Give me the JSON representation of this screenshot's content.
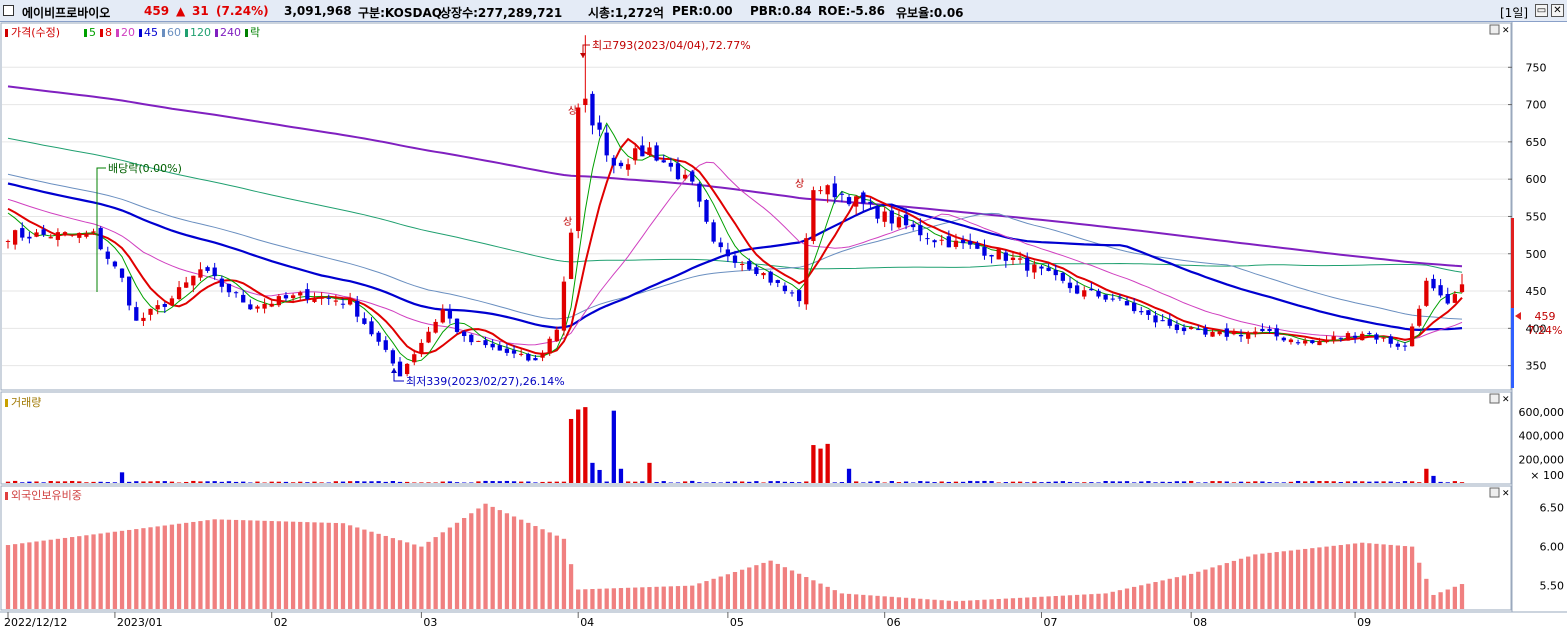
{
  "header": {
    "name": "에이비프로바이오",
    "price": "459",
    "change_arrow": "▲",
    "change": "31",
    "change_pct": "(7.24%)",
    "volume": "3,091,968",
    "market": "구분:KOSDAQ",
    "shares": "상장수:277,289,721",
    "mcap": "시총:1,272억",
    "per": "PER:0.00",
    "pbr": "PBR:0.84",
    "roe": "ROE:-5.86",
    "float_ratio": "유보율:0.06",
    "period": "[1일]",
    "colors": {
      "up": "#e00000",
      "down": "#0000e0",
      "text": "#000000"
    }
  },
  "window_buttons": [
    "▭",
    "✕"
  ],
  "pane_buttons": [
    "▭",
    "✕"
  ],
  "panes": {
    "price": {
      "legend": [
        {
          "text": "가격(수정)",
          "color": "#d00000"
        },
        {
          "text": "5",
          "color": "#00a000"
        },
        {
          "text": "8",
          "color": "#e00000"
        },
        {
          "text": "20",
          "color": "#d040c0"
        },
        {
          "text": "45",
          "color": "#0000d0"
        },
        {
          "text": "60",
          "color": "#6a8fc0"
        },
        {
          "text": "120",
          "color": "#20a070"
        },
        {
          "text": "240",
          "color": "#8020c0"
        },
        {
          "text": "락",
          "color": "#008000"
        }
      ],
      "annotations": {
        "high": "최고793(2023/04/04),72.77%",
        "low": "최저339(2023/02/27),26.14%",
        "dividend": "배당락(0.00%)",
        "limit_up_marks": [
          "상",
          "상",
          "상"
        ]
      },
      "last_price": "459",
      "last_pct": "7.24%",
      "yticks": [
        350,
        400,
        450,
        500,
        550,
        600,
        650,
        700,
        750
      ]
    },
    "volume": {
      "legend": "거래량",
      "yticks": [
        "600,000",
        "400,000",
        "200,000"
      ],
      "unit": "× 100"
    },
    "foreign": {
      "legend": "외국인보유비중",
      "yticks": [
        "6.50",
        "6.00",
        "5.50"
      ]
    }
  },
  "x_axis": [
    "2022/12/12",
    "2023/01",
    "02",
    "03",
    "04",
    "05",
    "06",
    "07",
    "08",
    "09"
  ],
  "chart_data": [
    {
      "type": "candlestick",
      "title": "가격(수정)",
      "ylim": [
        320,
        800
      ],
      "x": [
        "2022/12/12",
        "2023/01",
        "02",
        "03",
        "04",
        "05",
        "06",
        "07",
        "08",
        "09"
      ],
      "close_keypoints": [
        {
          "date": "2022/12/12",
          "close": 525
        },
        {
          "date": "2022/12/28",
          "close": 525
        },
        {
          "date": "2023/01/03",
          "close": 465
        },
        {
          "date": "2023/01/05",
          "close": 408
        },
        {
          "date": "2023/01/12",
          "close": 440
        },
        {
          "date": "2023/01/18",
          "close": 478
        },
        {
          "date": "2023/01/27",
          "close": 430
        },
        {
          "date": "2023/02/08",
          "close": 445
        },
        {
          "date": "2023/02/16",
          "close": 435
        },
        {
          "date": "2023/02/27",
          "close": 339
        },
        {
          "date": "2023/03/07",
          "close": 425
        },
        {
          "date": "2023/03/10",
          "close": 385
        },
        {
          "date": "2023/03/17",
          "close": 370
        },
        {
          "date": "2023/03/24",
          "close": 355
        },
        {
          "date": "2023/03/29",
          "close": 400
        },
        {
          "date": "2023/03/31",
          "close": 530
        },
        {
          "date": "2023/04/03",
          "close": 690
        },
        {
          "date": "2023/04/04",
          "close": 700
        },
        {
          "date": "2023/04/10",
          "close": 620
        },
        {
          "date": "2023/04/17",
          "close": 640
        },
        {
          "date": "2023/04/25",
          "close": 590
        },
        {
          "date": "2023/04/28",
          "close": 510
        },
        {
          "date": "2023/05/08",
          "close": 480
        },
        {
          "date": "2023/05/12",
          "close": 450
        },
        {
          "date": "2023/05/16",
          "close": 440
        },
        {
          "date": "2023/05/18",
          "close": 590
        },
        {
          "date": "2023/05/24",
          "close": 580
        },
        {
          "date": "2023/06/01",
          "close": 550
        },
        {
          "date": "2023/06/12",
          "close": 520
        },
        {
          "date": "2023/06/23",
          "close": 500
        },
        {
          "date": "2023/06/30",
          "close": 480
        },
        {
          "date": "2023/07/10",
          "close": 450
        },
        {
          "date": "2023/07/17",
          "close": 440
        },
        {
          "date": "2023/07/25",
          "close": 410
        },
        {
          "date": "2023/08/03",
          "close": 390
        },
        {
          "date": "2023/08/14",
          "close": 395
        },
        {
          "date": "2023/08/24",
          "close": 380
        },
        {
          "date": "2023/09/04",
          "close": 395
        },
        {
          "date": "2023/09/12",
          "close": 375
        },
        {
          "date": "2023/09/15",
          "close": 460
        },
        {
          "date": "2023/09/20",
          "close": 428
        },
        {
          "date": "2023/09/22",
          "close": 459
        }
      ],
      "high": 793,
      "high_date": "2023/04/04",
      "low": 339,
      "low_date": "2023/02/27",
      "series": [
        {
          "name": "5",
          "type": "line"
        },
        {
          "name": "8",
          "type": "line"
        },
        {
          "name": "20",
          "type": "line"
        },
        {
          "name": "45",
          "type": "line"
        },
        {
          "name": "60",
          "type": "line"
        },
        {
          "name": "120",
          "type": "line"
        },
        {
          "name": "240",
          "type": "line"
        }
      ],
      "last_close": 459,
      "last_change_pct": "7.24%"
    },
    {
      "type": "bar",
      "title": "거래량",
      "unit": "× 100",
      "ylim": [
        0,
        700000
      ],
      "spikes": [
        {
          "date": "2023/01/03",
          "value": 90000
        },
        {
          "date": "2023/03/31",
          "value": 540000
        },
        {
          "date": "2023/04/03",
          "value": 620000
        },
        {
          "date": "2023/04/04",
          "value": 640000
        },
        {
          "date": "2023/04/05",
          "value": 170000
        },
        {
          "date": "2023/04/06",
          "value": 110000
        },
        {
          "date": "2023/04/10",
          "value": 610000
        },
        {
          "date": "2023/04/11",
          "value": 120000
        },
        {
          "date": "2023/04/17",
          "value": 170000
        },
        {
          "date": "2023/05/18",
          "value": 320000
        },
        {
          "date": "2023/05/19",
          "value": 290000
        },
        {
          "date": "2023/05/22",
          "value": 330000
        },
        {
          "date": "2023/05/25",
          "value": 120000
        },
        {
          "date": "2023/09/15",
          "value": 120000
        },
        {
          "date": "2023/09/18",
          "value": 60000
        }
      ]
    },
    {
      "type": "bar",
      "title": "외국인보유비중",
      "ylim": [
        5.2,
        6.7
      ],
      "keypoints": [
        {
          "date": "2022/12/12",
          "value": 6.02
        },
        {
          "date": "2023/01/20",
          "value": 6.35
        },
        {
          "date": "2023/02/15",
          "value": 6.3
        },
        {
          "date": "2023/03/02",
          "value": 6.0
        },
        {
          "date": "2023/03/15",
          "value": 6.55
        },
        {
          "date": "2023/03/30",
          "value": 6.1
        },
        {
          "date": "2023/04/03",
          "value": 5.45
        },
        {
          "date": "2023/04/25",
          "value": 5.5
        },
        {
          "date": "2023/05/10",
          "value": 5.82
        },
        {
          "date": "2023/05/24",
          "value": 5.4
        },
        {
          "date": "2023/06/15",
          "value": 5.3
        },
        {
          "date": "2023/07/15",
          "value": 5.4
        },
        {
          "date": "2023/08/01",
          "value": 5.65
        },
        {
          "date": "2023/08/14",
          "value": 5.9
        },
        {
          "date": "2023/09/04",
          "value": 6.05
        },
        {
          "date": "2023/09/13",
          "value": 6.0
        },
        {
          "date": "2023/09/18",
          "value": 5.38
        },
        {
          "date": "2023/09/22",
          "value": 5.52
        }
      ]
    }
  ]
}
